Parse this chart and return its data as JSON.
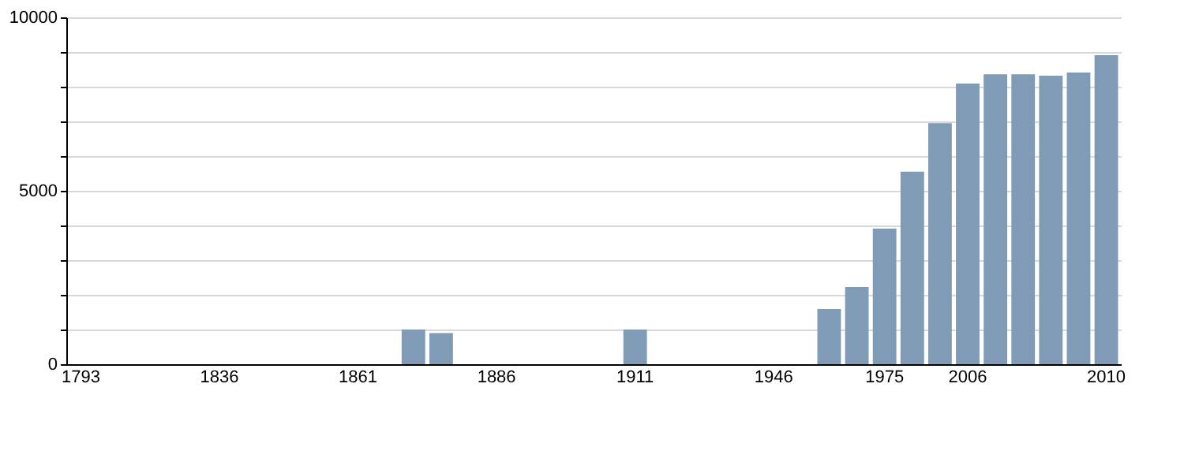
{
  "chart_data": {
    "type": "bar",
    "categories": [
      "1793",
      null,
      null,
      null,
      null,
      "1836",
      null,
      null,
      null,
      null,
      "1861",
      null,
      null,
      null,
      null,
      "1886",
      null,
      null,
      null,
      null,
      "1911",
      null,
      null,
      null,
      null,
      "1946",
      null,
      null,
      null,
      "1975",
      null,
      null,
      "2006",
      null,
      null,
      null,
      null,
      "2010"
    ],
    "values": [
      null,
      null,
      null,
      null,
      null,
      null,
      null,
      null,
      null,
      null,
      null,
      null,
      1000,
      900,
      null,
      null,
      null,
      null,
      null,
      null,
      1000,
      null,
      null,
      null,
      null,
      null,
      null,
      1590,
      2230,
      3910,
      5550,
      6950,
      8090,
      8360,
      8360,
      8320,
      8410,
      8910
    ],
    "color": "#7f9bb5",
    "ylim": [
      0,
      10000
    ],
    "yticks": [
      0,
      {
        "value": 1000,
        "label": null
      },
      {
        "value": 2000,
        "label": null
      },
      {
        "value": 3000,
        "label": null
      },
      {
        "value": 4000,
        "label": null
      },
      5000,
      {
        "value": 6000,
        "label": null
      },
      {
        "value": 7000,
        "label": null
      },
      {
        "value": 8000,
        "label": null
      },
      {
        "value": 9000,
        "label": null
      },
      10000
    ],
    "grid": true
  }
}
